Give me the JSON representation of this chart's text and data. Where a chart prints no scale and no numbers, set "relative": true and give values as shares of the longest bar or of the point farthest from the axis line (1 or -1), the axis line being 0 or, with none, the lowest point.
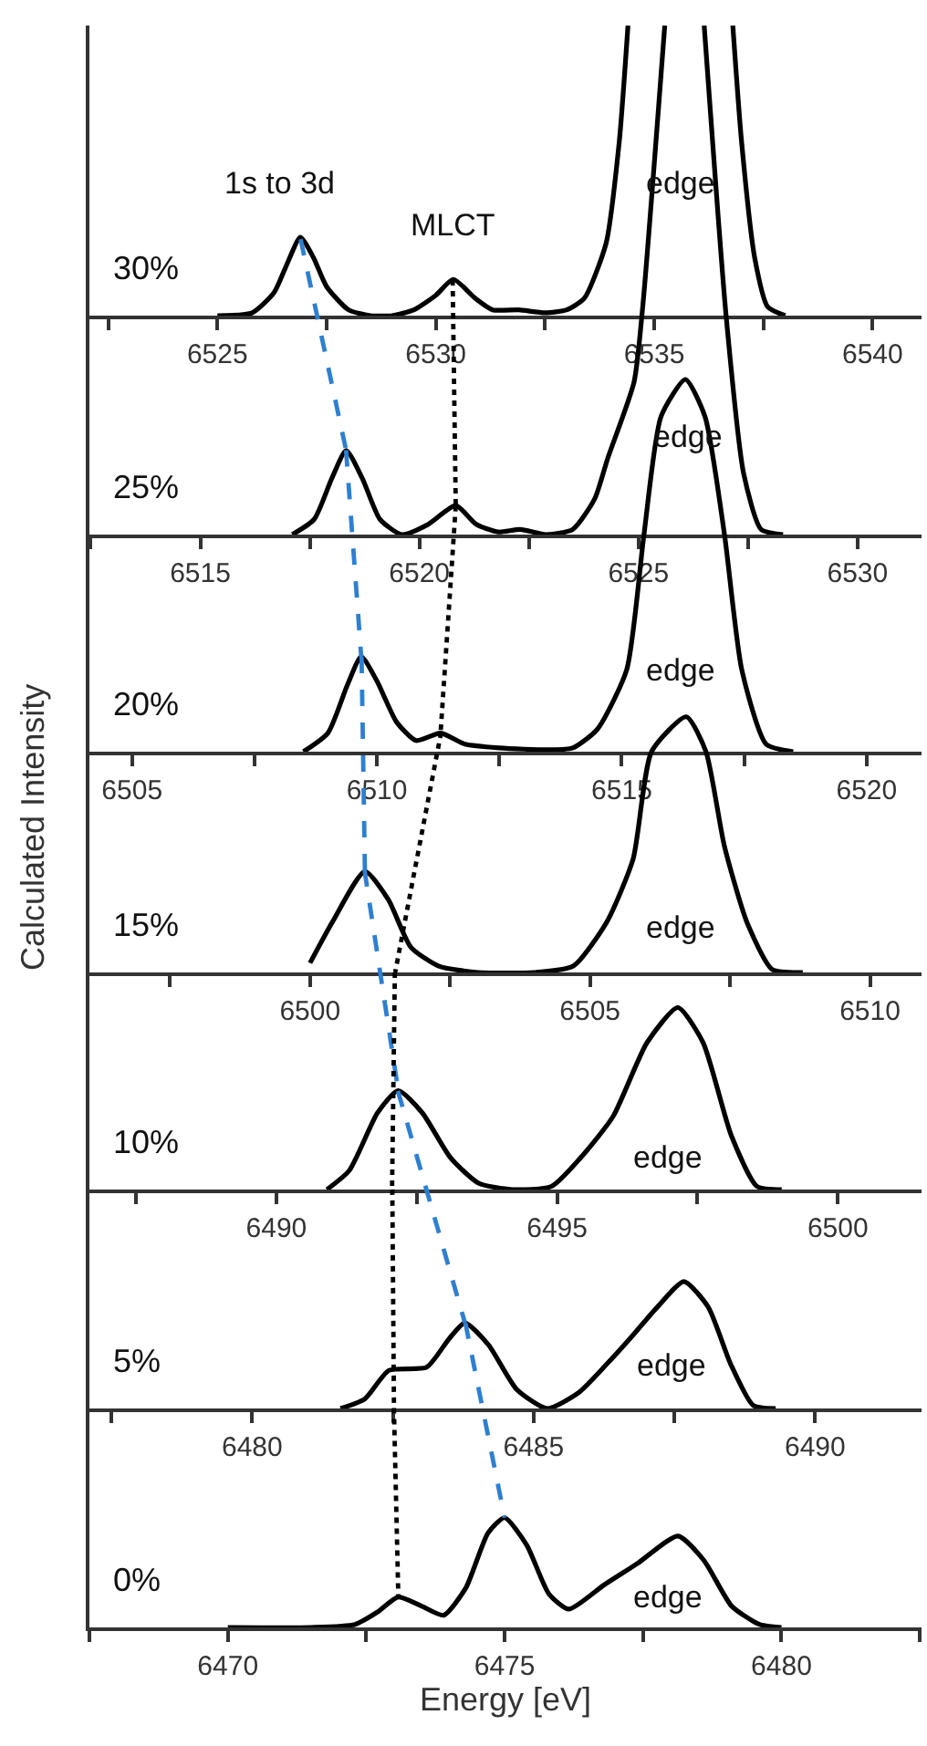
{
  "chart_data": [
    {
      "type": "line",
      "title": "30%",
      "relative": true,
      "tick_labels": "x",
      "xlim": [
        6522.07,
        6541.12
      ],
      "xticks": [
        {
          "value": 6522.5,
          "label": null
        },
        6525,
        {
          "value": 6527.5,
          "label": null
        },
        6530,
        {
          "value": 6532.5,
          "label": null
        },
        6535,
        {
          "value": 6537.5,
          "label": null
        },
        6540
      ],
      "annotations": [
        "1s to 3d",
        "MLCT",
        "edge"
      ],
      "series": [
        {
          "color": "#000000",
          "x": [
            6525.0,
            6525.8,
            6526.3,
            6526.6,
            6526.9,
            6527.2,
            6527.5,
            6528.0,
            6528.5,
            6529.0,
            6529.5,
            6530.0,
            6530.4,
            6530.9,
            6531.3,
            6531.9,
            6532.5,
            6533.0,
            6533.4,
            6533.9,
            6534.2,
            6534.4,
            6535.6,
            6536.8,
            6537.0,
            6537.3,
            6537.6,
            6538.0
          ],
          "values": [
            0,
            0.01,
            0.08,
            0.18,
            0.27,
            0.2,
            0.1,
            0.02,
            0,
            0,
            0.02,
            0.07,
            0.125,
            0.06,
            0.02,
            0.02,
            0.01,
            0.02,
            0.06,
            0.25,
            0.6,
            1.0,
            null,
            1.0,
            0.6,
            0.2,
            0.03,
            0
          ]
        }
      ]
    },
    {
      "type": "line",
      "title": "25%",
      "relative": true,
      "tick_labels": "x",
      "xlim": [
        6512.47,
        6531.46
      ],
      "xticks": [
        {
          "value": 6512.5,
          "label": null
        },
        6515,
        {
          "value": 6517.5,
          "label": null
        },
        6520,
        {
          "value": 6522.5,
          "label": null
        },
        6525,
        {
          "value": 6527.5,
          "label": null
        },
        6530
      ],
      "annotations": [
        "edge"
      ],
      "series": [
        {
          "color": "#000000",
          "x": [
            6517.1,
            6517.6,
            6518.0,
            6518.33,
            6518.7,
            6519.1,
            6519.6,
            6520.2,
            6520.83,
            6521.3,
            6521.8,
            6522.3,
            6522.9,
            6523.5,
            6524.0,
            6524.3,
            6524.9,
            6525.1,
            6525.6,
            6526.0,
            6526.5,
            6527.0,
            6527.4,
            6527.8,
            6528.3
          ],
          "values": [
            0,
            0.03,
            0.11,
            0.165,
            0.11,
            0.03,
            0,
            0.02,
            0.057,
            0.02,
            0.005,
            0.01,
            0,
            0.01,
            0.07,
            0.15,
            0.3,
            0.45,
            1.0,
            null,
            1.0,
            0.43,
            0.12,
            0.01,
            0
          ]
        },
        {
          "color": "#2e7fd0",
          "line_style": "dashed",
          "x": [
            6517.29,
            6518.33
          ],
          "values": [
            0.58,
            0.165
          ]
        },
        {
          "color": "#000000",
          "line_style": "dotted",
          "x": [
            6520.76,
            6520.83
          ],
          "values": [
            0.5,
            0.057
          ]
        }
      ]
    },
    {
      "type": "line",
      "title": "20%",
      "relative": true,
      "tick_labels": "x",
      "xlim": [
        6504.13,
        6521.12
      ],
      "xticks": [
        6505,
        {
          "value": 6507.5,
          "label": null
        },
        6510,
        {
          "value": 6512.5,
          "label": null
        },
        6515,
        {
          "value": 6517.5,
          "label": null
        },
        6520
      ],
      "annotations": [
        "edge"
      ],
      "series": [
        {
          "color": "#000000",
          "x": [
            6508.5,
            6509.0,
            6509.4,
            6509.68,
            6510.0,
            6510.4,
            6510.8,
            6511.3,
            6511.8,
            6512.5,
            6513.5,
            6514.0,
            6514.5,
            6515.1,
            6515.45,
            6515.8,
            6516.3,
            6516.7,
            6517.1,
            6517.45,
            6517.95,
            6518.5
          ],
          "values": [
            0,
            0.05,
            0.18,
            0.255,
            0.19,
            0.08,
            0.03,
            0.05,
            0.02,
            0.01,
            0.005,
            0.01,
            0.06,
            0.22,
            0.58,
            0.9,
            1.0,
            0.9,
            0.58,
            0.22,
            0.02,
            0
          ]
        },
        {
          "color": "#2e7fd0",
          "line_style": "dashed",
          "x": [
            6509.37,
            6509.68
          ],
          "values": [
            0.81,
            0.255
          ]
        },
        {
          "color": "#000000",
          "line_style": "dotted",
          "x": [
            6511.61,
            6511.3
          ],
          "values": [
            0.66,
            0.05
          ]
        }
      ]
    },
    {
      "type": "line",
      "title": "15%",
      "ylabel": "Calculated Intensity",
      "relative": true,
      "tick_labels": "x",
      "xlim": [
        6496.06,
        6510.92
      ],
      "xticks": [
        {
          "value": 6497.5,
          "label": null
        },
        6500,
        {
          "value": 6502.5,
          "label": null
        },
        6505,
        {
          "value": 6507.5,
          "label": null
        },
        6510
      ],
      "annotations": [
        "edge"
      ],
      "series": [
        {
          "color": "#000000",
          "x": [
            6500.0,
            6500.4,
            6500.98,
            6501.4,
            6501.8,
            6502.3,
            6503.0,
            6504.0,
            6504.7,
            6505.3,
            6505.77,
            6506.1,
            6506.72,
            6507.07,
            6507.4,
            6507.8,
            6508.25,
            6508.8
          ],
          "values": [
            0.03,
            0.16,
            0.32,
            0.23,
            0.08,
            0.02,
            0,
            0,
            0.02,
            0.16,
            0.36,
            0.7,
            0.81,
            0.7,
            0.4,
            0.16,
            0.01,
            0
          ]
        },
        {
          "color": "#2e7fd0",
          "line_style": "dashed",
          "x": [
            6500.92,
            6500.98
          ],
          "values": [
            1.0,
            0.32
          ]
        },
        {
          "color": "#000000",
          "line_style": "dotted",
          "x": [
            6502.34,
            6501.52
          ],
          "values": [
            0.76,
            0
          ]
        }
      ]
    },
    {
      "type": "line",
      "title": "10%",
      "relative": true,
      "tick_labels": "x",
      "xlim": [
        6486.67,
        6501.49
      ],
      "xticks": [
        {
          "value": 6487.5,
          "label": null
        },
        6490,
        {
          "value": 6492.5,
          "label": null
        },
        6495,
        {
          "value": 6497.5,
          "label": null
        },
        6500
      ],
      "annotations": [
        "edge"
      ],
      "series": [
        {
          "color": "#000000",
          "x": [
            6490.9,
            6491.3,
            6491.8,
            6492.17,
            6492.6,
            6493.1,
            6493.6,
            6494.2,
            6494.9,
            6495.47,
            6496.0,
            6496.6,
            6497.15,
            6497.6,
            6498.1,
            6498.56,
            6499.0
          ],
          "values": [
            0,
            0.06,
            0.24,
            0.31,
            0.24,
            0.1,
            0.02,
            0,
            0.01,
            0.11,
            0.23,
            0.46,
            0.57,
            0.46,
            0.17,
            0.01,
            0
          ]
        },
        {
          "color": "#2e7fd0",
          "line_style": "dashed",
          "x": [
            6491.57,
            6492.17
          ],
          "values": [
            1.0,
            0.31
          ]
        },
        {
          "color": "#000000",
          "line_style": "dotted",
          "x": [
            6492.11,
            6492.06
          ],
          "values": [
            0.68,
            0
          ]
        }
      ]
    },
    {
      "type": "line",
      "title": "5%",
      "relative": true,
      "tick_labels": "x",
      "xlim": [
        6477.11,
        6491.89
      ],
      "xticks": [
        {
          "value": 6477.5,
          "label": null
        },
        6480,
        {
          "value": 6482.5,
          "label": null
        },
        6485,
        {
          "value": 6487.5,
          "label": null
        },
        6490
      ],
      "annotations": [
        "edge"
      ],
      "series": [
        {
          "color": "#000000",
          "x": [
            6481.57,
            6482.0,
            6482.43,
            6483.1,
            6483.5,
            6483.78,
            6484.2,
            6484.7,
            6485.24,
            6485.8,
            6486.3,
            6486.76,
            6487.2,
            6487.67,
            6488.1,
            6488.5,
            6488.9,
            6489.3
          ],
          "values": [
            0,
            0.03,
            0.12,
            0.13,
            0.22,
            0.27,
            0.2,
            0.06,
            0,
            0.05,
            0.14,
            0.23,
            0.32,
            0.4,
            0.32,
            0.14,
            0.01,
            0
          ]
        },
        {
          "color": "#2e7fd0",
          "line_style": "dashed",
          "x": [
            6482.59,
            6483.78
          ],
          "values": [
            1.0,
            0.27
          ]
        },
        {
          "color": "#000000",
          "line_style": "dotted",
          "x": [
            6482.49,
            6482.52
          ],
          "values": [
            0.69,
            0
          ]
        }
      ]
    },
    {
      "type": "line",
      "title": "0%",
      "xlabel": "Energy [eV]",
      "relative": true,
      "tick_labels": "x",
      "xlim": [
        6467.5,
        6482.53
      ],
      "xticks": [
        {
          "value": 6467.5,
          "label": null
        },
        6470,
        {
          "value": 6472.5,
          "label": null
        },
        6475,
        {
          "value": 6477.5,
          "label": null
        },
        6480,
        {
          "value": 6482.5,
          "label": null
        }
      ],
      "annotations": [
        "edge"
      ],
      "series": [
        {
          "color": "#000000",
          "x": [
            6470.0,
            6471.5,
            6472.3,
            6472.7,
            6473.08,
            6473.5,
            6473.9,
            6474.3,
            6474.7,
            6475.0,
            6475.4,
            6475.8,
            6476.16,
            6476.8,
            6477.4,
            6478.13,
            6478.6,
            6479.1,
            6479.6,
            6480.0
          ],
          "values": [
            0,
            0,
            0.01,
            0.05,
            0.1,
            0.07,
            0.04,
            0.13,
            0.31,
            0.36,
            0.27,
            0.11,
            0.06,
            0.14,
            0.21,
            0.3,
            0.22,
            0.07,
            0.01,
            0
          ]
        },
        {
          "color": "#2e7fd0",
          "line_style": "dashed",
          "x": [
            6474.29,
            6475.0
          ],
          "values": [
            1.0,
            0.36
          ]
        },
        {
          "color": "#000000",
          "line_style": "dotted",
          "x": [
            6473.0,
            6473.08
          ],
          "values": [
            0.72,
            0.1
          ]
        }
      ]
    }
  ]
}
